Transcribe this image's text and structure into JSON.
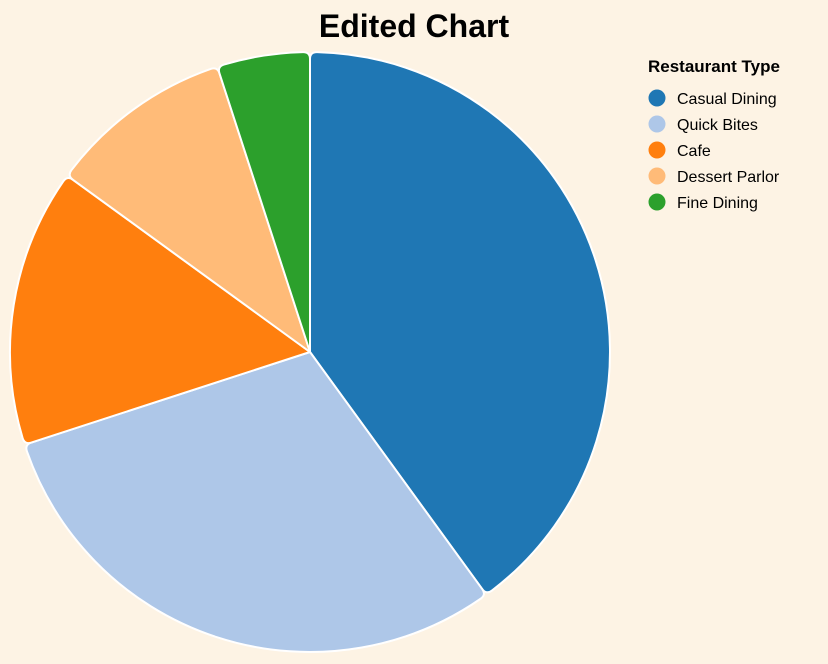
{
  "chart_data": {
    "type": "pie",
    "title": "Edited Chart",
    "legend": {
      "title": "Restaurant Type",
      "placement": "top-right"
    },
    "categories": [
      "Casual Dining",
      "Quick Bites",
      "Cafe",
      "Dessert Parlor",
      "Fine Dining"
    ],
    "values": [
      40,
      30,
      15,
      10,
      5
    ],
    "colors": [
      "#1f77b4",
      "#aec7e8",
      "#ff7f0e",
      "#ffbb78",
      "#2ca02c"
    ],
    "start_angle_deg": 0,
    "direction": "clockwise"
  }
}
